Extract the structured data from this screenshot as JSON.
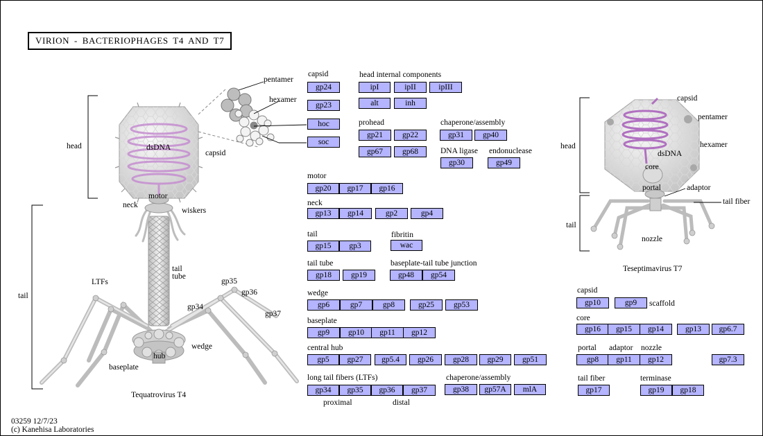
{
  "title": "VIRION  -  BACTERIOPHAGES  T4  AND  T7",
  "footer": {
    "map_id": "03259 12/7/23",
    "copyright": "(c) Kanehisa Laboratories"
  },
  "t4": {
    "caption": "Tequatrovirus T4",
    "labels": {
      "head": "head",
      "tail": "tail",
      "dsdna": "dsDNA",
      "capsid": "capsid",
      "neck": "neck",
      "motor": "motor",
      "wiskers": "wiskers",
      "tail_tube_1": "tail",
      "tail_tube_2": "tube",
      "ltfs": "LTFs",
      "gp35": "gp35",
      "gp36": "gp36",
      "gp37": "gp37",
      "gp34": "gp34",
      "wedge": "wedge",
      "hub": "hub",
      "baseplate": "baseplate",
      "pentamer": "pentamer",
      "hexamer": "hexamer"
    }
  },
  "t7": {
    "caption": "Teseptimavirus T7",
    "labels": {
      "capsid": "capsid",
      "pentamer": "pentamer",
      "head": "head",
      "dsdna": "dsDNA",
      "hexamer": "hexamer",
      "core": "core",
      "portal": "portal",
      "adaptor": "adaptor",
      "tail_fiber": "tail fiber",
      "tail": "tail",
      "nozzle": "nozzle"
    }
  },
  "groups": {
    "capsid": "capsid",
    "head_internal": "head internal components",
    "prohead": "prohead",
    "chaperone_assembly": "chaperone/assembly",
    "dna_ligase": "DNA ligase",
    "endonuclease": "endonuclease",
    "motor": "motor",
    "neck": "neck",
    "tail": "tail",
    "fibritin": "fibritin",
    "tail_tube": "tail tube",
    "baseplate_tail_tube": "baseplate-tail tube junction",
    "wedge": "wedge",
    "baseplate": "baseplate",
    "central_hub": "central hub",
    "ltf": "long tail fibers (LTFs)",
    "chaperone_assembly_2": "chaperone/assembly",
    "proximal": "proximal",
    "distal": "distal",
    "t7_capsid": "capsid",
    "scaffold": "scaffold",
    "t7_core": "core",
    "t7_portal": "portal",
    "t7_adaptor": "adaptor",
    "t7_nozzle": "nozzle",
    "t7_tail_fiber": "tail fiber",
    "t7_terminase": "terminase"
  },
  "genes": {
    "gp24": "gp24",
    "gp23": "gp23",
    "hoc": "hoc",
    "soc": "soc",
    "ipI": "ipI",
    "ipII": "ipII",
    "ipIII": "ipIII",
    "alt": "alt",
    "inh": "inh",
    "gp21": "gp21",
    "gp22": "gp22",
    "gp67": "gp67",
    "gp68": "gp68",
    "gp31": "gp31",
    "gp40": "gp40",
    "gp30": "gp30",
    "gp49": "gp49",
    "gp20": "gp20",
    "gp17": "gp17",
    "gp16": "gp16",
    "gp13": "gp13",
    "gp14": "gp14",
    "gp2": "gp2",
    "gp4": "gp4",
    "gp15": "gp15",
    "gp3": "gp3",
    "wac": "wac",
    "gp18": "gp18",
    "gp19": "gp19",
    "gp48": "gp48",
    "gp54": "gp54",
    "gp6": "gp6",
    "gp7": "gp7",
    "gp8": "gp8",
    "gp25": "gp25",
    "gp53": "gp53",
    "gp9": "gp9",
    "gp10": "gp10",
    "gp11": "gp11",
    "gp12": "gp12",
    "gp5": "gp5",
    "gp27": "gp27",
    "gp5_4": "gp5.4",
    "gp26": "gp26",
    "gp28": "gp28",
    "gp29": "gp29",
    "gp51": "gp51",
    "gp34": "gp34",
    "gp35": "gp35",
    "gp36": "gp36",
    "gp37": "gp37",
    "gp38": "gp38",
    "gp57A": "gp57A",
    "mlA": "mlA",
    "t7_gp10": "gp10",
    "t7_gp9": "gp9",
    "t7_gp16": "gp16",
    "t7_gp15": "gp15",
    "t7_gp14": "gp14",
    "t7_gp13": "gp13",
    "t7_gp6_7": "gp6.7",
    "t7_gp8": "gp8",
    "t7_gp11": "gp11",
    "t7_gp12": "gp12",
    "t7_gp7_3": "gp7.3",
    "t7_gp17": "gp17",
    "t7_gp19": "gp19",
    "t7_gp18": "gp18"
  },
  "colors": {
    "gene_box": "#b4b4ff",
    "dna": "#b070c0",
    "virion_gray": "#d0d0d0"
  }
}
